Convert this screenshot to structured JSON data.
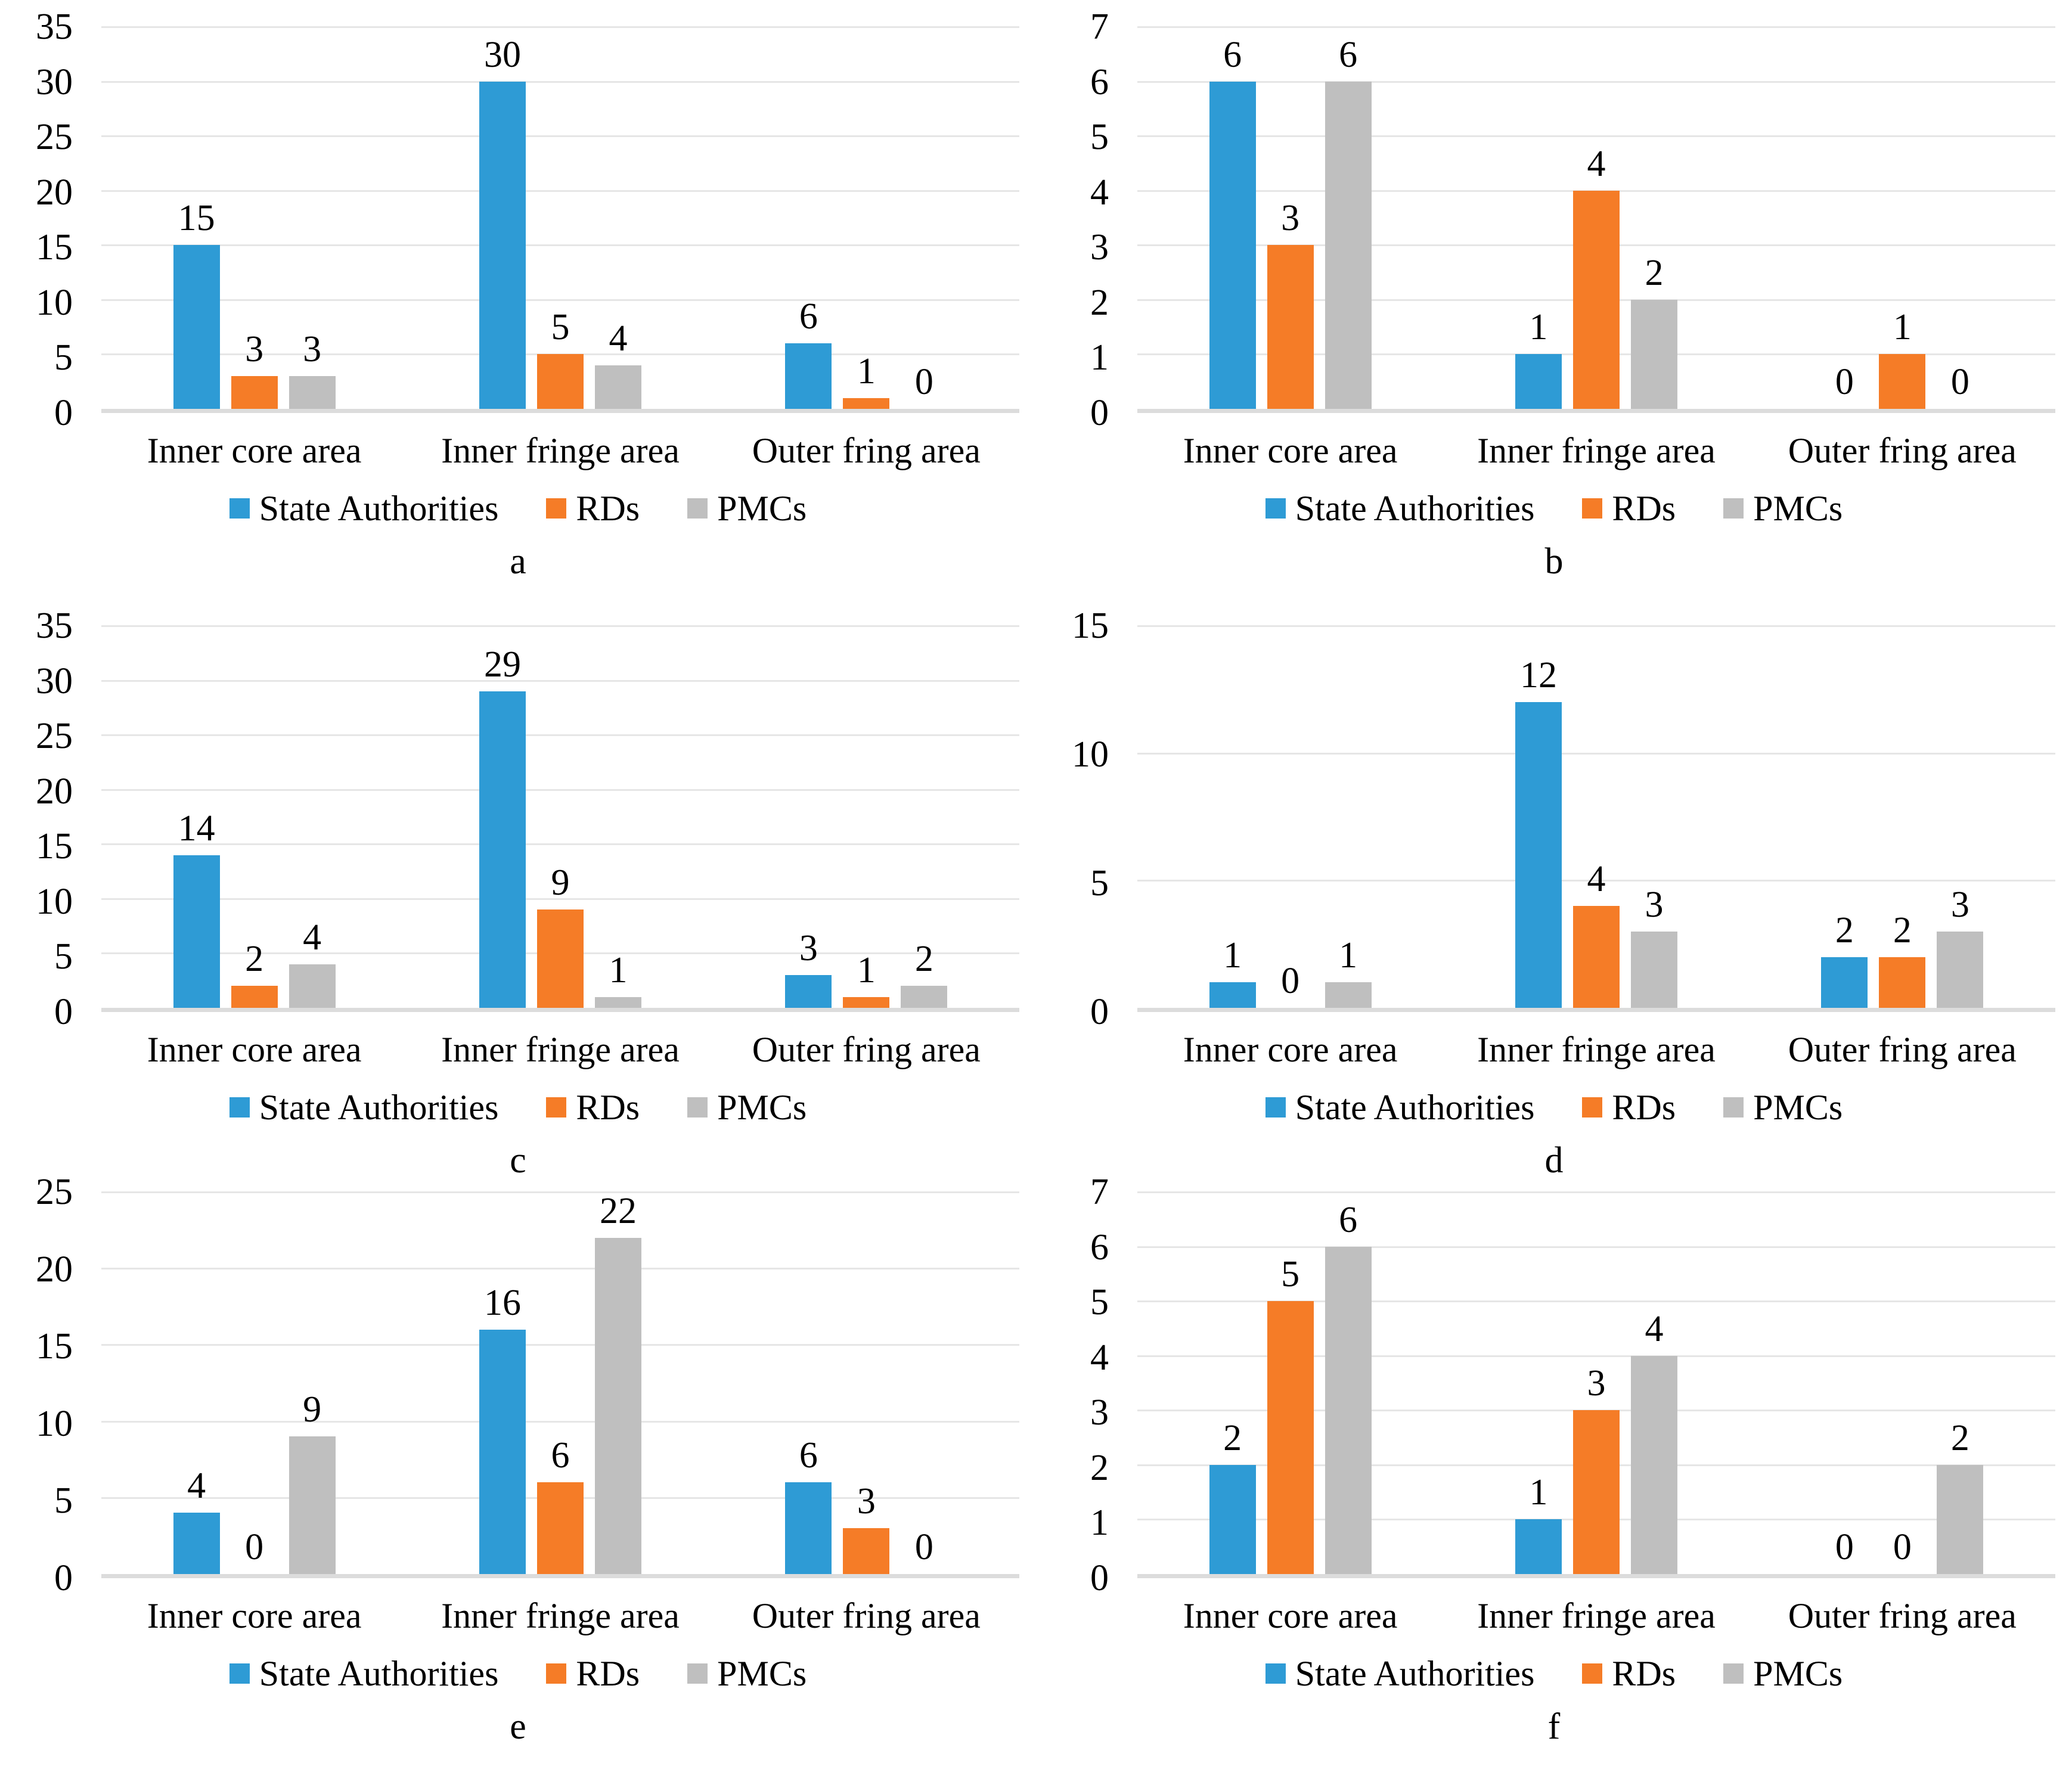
{
  "colors": {
    "series": [
      "#2e9bd5",
      "#f57c27",
      "#bfbfbf"
    ],
    "gridline": "#e6e6e6",
    "axis_line": "#dcdcdc",
    "text": "#000000"
  },
  "legend_labels": [
    "State Authorities",
    "RDs",
    "PMCs"
  ],
  "chart_data": [
    {
      "type": "bar",
      "label": "a",
      "ylim": [
        0,
        35
      ],
      "ytick_step": 5,
      "grid": true,
      "legend_position": "bottom",
      "categories": [
        "Inner core area",
        "Inner fringe area",
        "Outer fring area"
      ],
      "series": [
        {
          "name": "State Authorities",
          "values": [
            15,
            30,
            6
          ]
        },
        {
          "name": "RDs",
          "values": [
            3,
            5,
            1
          ]
        },
        {
          "name": "PMCs",
          "values": [
            3,
            4,
            0
          ]
        }
      ]
    },
    {
      "type": "bar",
      "label": "b",
      "ylim": [
        0,
        7
      ],
      "ytick_step": 1,
      "grid": true,
      "legend_position": "bottom",
      "categories": [
        "Inner core area",
        "Inner fringe area",
        "Outer fring area"
      ],
      "series": [
        {
          "name": "State Authorities",
          "values": [
            6,
            1,
            0
          ]
        },
        {
          "name": "RDs",
          "values": [
            3,
            4,
            1
          ]
        },
        {
          "name": "PMCs",
          "values": [
            6,
            2,
            0
          ]
        }
      ]
    },
    {
      "type": "bar",
      "label": "c",
      "ylim": [
        0,
        35
      ],
      "ytick_step": 5,
      "grid": true,
      "legend_position": "bottom",
      "categories": [
        "Inner core area",
        "Inner fringe area",
        "Outer fring area"
      ],
      "series": [
        {
          "name": "State Authorities",
          "values": [
            14,
            29,
            3
          ]
        },
        {
          "name": "RDs",
          "values": [
            2,
            9,
            1
          ]
        },
        {
          "name": "PMCs",
          "values": [
            4,
            1,
            2
          ]
        }
      ]
    },
    {
      "type": "bar",
      "label": "d",
      "ylim": [
        0,
        15
      ],
      "ytick_step": 5,
      "grid": true,
      "legend_position": "bottom",
      "categories": [
        "Inner core area",
        "Inner fringe area",
        "Outer fring area"
      ],
      "series": [
        {
          "name": "State Authorities",
          "values": [
            1,
            12,
            2
          ]
        },
        {
          "name": "RDs",
          "values": [
            0,
            4,
            2
          ]
        },
        {
          "name": "PMCs",
          "values": [
            1,
            3,
            3
          ]
        }
      ]
    },
    {
      "type": "bar",
      "label": "e",
      "ylim": [
        0,
        25
      ],
      "ytick_step": 5,
      "grid": true,
      "legend_position": "bottom",
      "categories": [
        "Inner core area",
        "Inner fringe area",
        "Outer fring area"
      ],
      "series": [
        {
          "name": "State Authorities",
          "values": [
            4,
            16,
            6
          ]
        },
        {
          "name": "RDs",
          "values": [
            0,
            6,
            3
          ]
        },
        {
          "name": "PMCs",
          "values": [
            9,
            22,
            0
          ]
        }
      ]
    },
    {
      "type": "bar",
      "label": "f",
      "ylim": [
        0,
        7
      ],
      "ytick_step": 1,
      "grid": true,
      "legend_position": "bottom",
      "categories": [
        "Inner core area",
        "Inner fringe area",
        "Outer fring area"
      ],
      "series": [
        {
          "name": "State Authorities",
          "values": [
            2,
            1,
            0
          ]
        },
        {
          "name": "RDs",
          "values": [
            5,
            3,
            0
          ]
        },
        {
          "name": "PMCs",
          "values": [
            6,
            4,
            2
          ]
        }
      ]
    }
  ]
}
